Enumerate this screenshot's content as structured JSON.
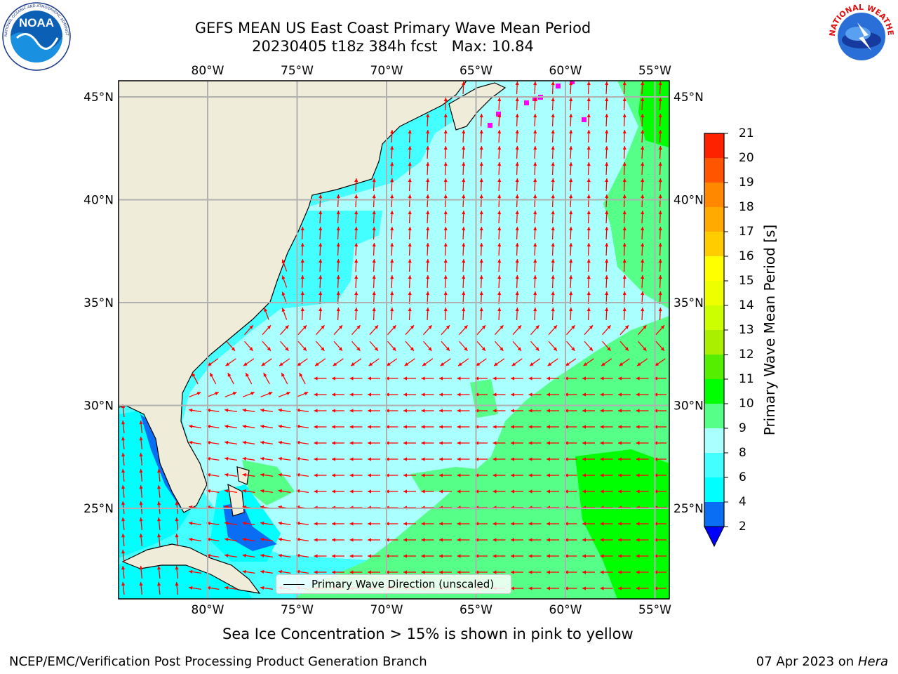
{
  "title": {
    "line1": "GEFS MEAN US East Coast Primary Wave Mean Period",
    "line2": "20230405 t18z 384h fcst   Max: 10.84"
  },
  "logos": {
    "left": {
      "name": "NOAA",
      "text": "NOAA",
      "ring_text": "NATIONAL OCEANIC AND ATMOSPHERIC ADMINISTRATION · U.S. DEPARTMENT OF COMMERCE"
    },
    "right": {
      "name": "National Weather Service",
      "ring_text": "NATIONAL WEATHER SERVICE"
    }
  },
  "map": {
    "lon_ticks": [
      "80°W",
      "75°W",
      "70°W",
      "65°W",
      "60°W",
      "55°W"
    ],
    "lat_ticks": [
      "45°N",
      "40°N",
      "35°N",
      "30°N",
      "25°N"
    ],
    "legend": "Primary Wave Direction (unscaled)"
  },
  "colorbar": {
    "label": "Primary Wave Mean Period [s]",
    "ticks": [
      "2",
      "4",
      "6",
      "8",
      "9",
      "10",
      "11",
      "12",
      "13",
      "14",
      "15",
      "16",
      "17",
      "18",
      "19",
      "20",
      "21"
    ],
    "colors": [
      "#0a6ef5",
      "#00ffff",
      "#44ffff",
      "#aaffff",
      "#55ff88",
      "#00ff00",
      "#55ee00",
      "#aaee00",
      "#ccff00",
      "#eeff00",
      "#ffff00",
      "#ffcc00",
      "#ffaa00",
      "#ff8800",
      "#ff5500",
      "#ff2200"
    ],
    "extend_color": "#0000ff"
  },
  "subtitle": "Sea Ice Concentration > 15% is shown in pink to yellow",
  "footer": {
    "left": "NCEP/EMC/Verification Post Processing Product Generation Branch",
    "right_date": "07 Apr 2023 on",
    "right_host": "Hera"
  },
  "colors": {
    "land": "#efedda",
    "arrow": "#ff0000",
    "grid": "#b0b0b0",
    "period_4_6": "#00ffff",
    "period_6_8": "#44ffff",
    "period_8_9": "#aaffff",
    "period_9_10": "#55ff88",
    "period_10_11": "#00ff00",
    "period_2_4": "#0a6ef5",
    "sea_ice": "#ff00ff"
  }
}
